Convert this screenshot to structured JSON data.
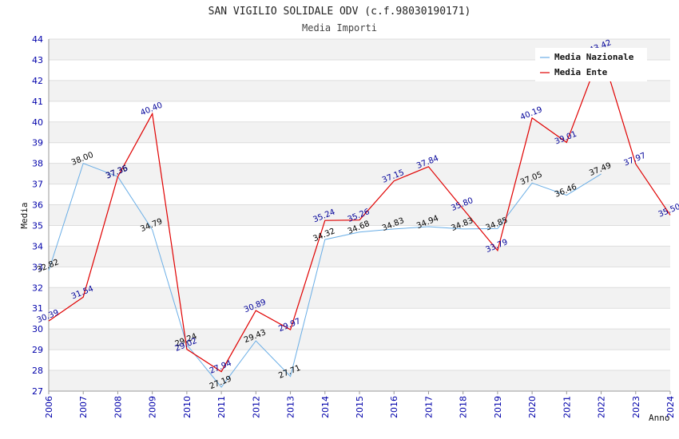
{
  "chart_data": {
    "type": "line",
    "title": "SAN VIGILIO SOLIDALE ODV (c.f.98030190171)",
    "subtitle": "Media Importi",
    "xlabel": "Anno",
    "ylabel": "Media",
    "ylim": [
      27,
      44
    ],
    "x": [
      "2006",
      "2007",
      "2008",
      "2009",
      "2010",
      "2011",
      "2012",
      "2013",
      "2014",
      "2015",
      "2016",
      "2017",
      "2018",
      "2019",
      "2020",
      "2021",
      "2022",
      "2023",
      "2024"
    ],
    "yticks": [
      "27",
      "28",
      "29",
      "30",
      "31",
      "32",
      "33",
      "34",
      "35",
      "36",
      "37",
      "38",
      "39",
      "40",
      "41",
      "42",
      "43",
      "44"
    ],
    "grid": true,
    "legend_position": "top-right",
    "series": [
      {
        "name": "Media Nazionale",
        "color": "#6aaee6",
        "label_color": "#000000",
        "values": [
          32.82,
          38.0,
          37.36,
          34.79,
          29.24,
          27.19,
          29.43,
          27.71,
          34.32,
          34.68,
          34.83,
          34.94,
          34.83,
          34.85,
          37.05,
          36.46,
          37.49,
          null,
          null
        ],
        "labels": [
          "32.82",
          "38.00",
          "37.36",
          "34.79",
          "29.24",
          "27.19",
          "29.43",
          "27.71",
          "34.32",
          "34.68",
          "34.83",
          "34.94",
          "34.83",
          "34.85",
          "37.05",
          "36.46",
          "37.49",
          null,
          null
        ]
      },
      {
        "name": "Media Ente",
        "color": "#e00000",
        "label_color": "#000099",
        "values": [
          30.39,
          31.54,
          37.35,
          40.4,
          29.02,
          27.94,
          30.89,
          29.97,
          35.24,
          35.26,
          37.15,
          37.84,
          35.8,
          33.79,
          40.19,
          39.01,
          43.42,
          37.97,
          35.5
        ],
        "labels": [
          "30.39",
          "31.54",
          "37.35",
          "40.40",
          "29.02",
          "27.94",
          "30.89",
          "29.97",
          "35.24",
          "35.26",
          "37.15",
          "37.84",
          "35.80",
          "33.79",
          "40.19",
          "39.01",
          "43.42",
          "37.97",
          "35.50"
        ]
      }
    ]
  }
}
